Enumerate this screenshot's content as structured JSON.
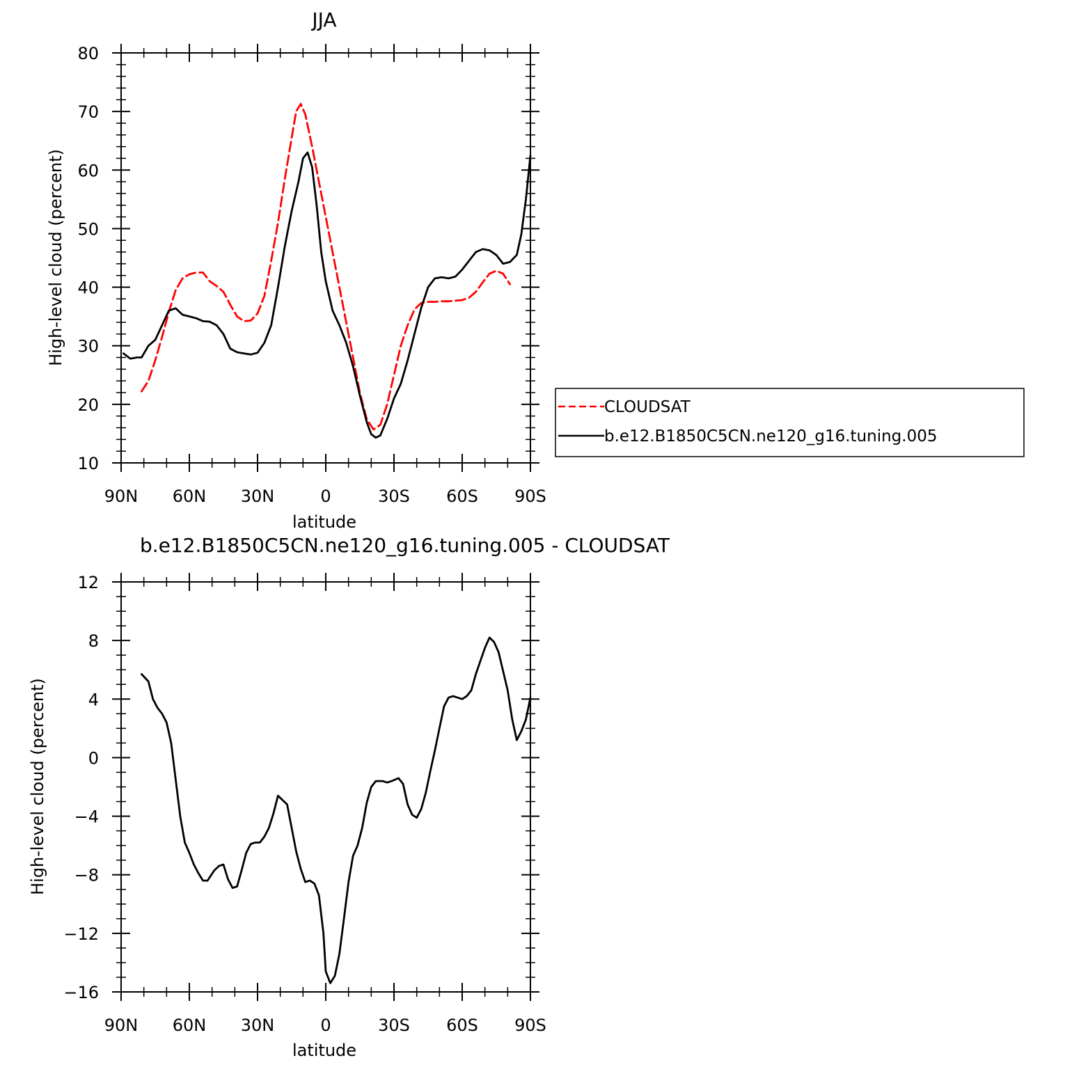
{
  "chart_data": [
    {
      "type": "line",
      "title": "JJA",
      "xlabel": "latitude",
      "ylabel": "High-level cloud (percent)",
      "xlim": [
        -90,
        90
      ],
      "ylim": [
        10,
        80
      ],
      "x_ticks": [
        -90,
        -60,
        -30,
        0,
        30,
        60,
        90
      ],
      "x_tick_labels": [
        "90N",
        "60N",
        "30N",
        "0",
        "30S",
        "60S",
        "90S"
      ],
      "y_ticks": [
        10,
        20,
        30,
        40,
        50,
        60,
        70,
        80
      ],
      "y_tick_labels": [
        "10",
        "20",
        "30",
        "40",
        "50",
        "60",
        "70",
        "80"
      ],
      "legend_position": "right",
      "series": [
        {
          "name": "CLOUDSAT",
          "color": "#ff0000",
          "dash": "dashed",
          "points": [
            [
              -81,
              22.2
            ],
            [
              -78,
              24.0
            ],
            [
              -75,
              27.5
            ],
            [
              -72,
              31.5
            ],
            [
              -69,
              35.8
            ],
            [
              -66,
              39.5
            ],
            [
              -63,
              41.5
            ],
            [
              -60,
              42.2
            ],
            [
              -57,
              42.5
            ],
            [
              -54,
              42.5
            ],
            [
              -51,
              41.0
            ],
            [
              -48,
              40.2
            ],
            [
              -45,
              39.2
            ],
            [
              -42,
              37.0
            ],
            [
              -39,
              35.0
            ],
            [
              -36,
              34.2
            ],
            [
              -33,
              34.3
            ],
            [
              -30,
              35.5
            ],
            [
              -27,
              38.5
            ],
            [
              -24,
              44.5
            ],
            [
              -21,
              51.0
            ],
            [
              -18,
              58.5
            ],
            [
              -15,
              65.5
            ],
            [
              -13,
              70.0
            ],
            [
              -11,
              71.3
            ],
            [
              -9,
              69.5
            ],
            [
              -6,
              64.0
            ],
            [
              -3,
              58.0
            ],
            [
              0,
              52.0
            ],
            [
              3,
              46.0
            ],
            [
              6,
              40.0
            ],
            [
              9,
              34.0
            ],
            [
              12,
              28.0
            ],
            [
              15,
              22.0
            ],
            [
              18,
              17.5
            ],
            [
              21,
              15.7
            ],
            [
              24,
              16.5
            ],
            [
              27,
              20.0
            ],
            [
              30,
              25.0
            ],
            [
              33,
              30.0
            ],
            [
              36,
              33.5
            ],
            [
              39,
              36.2
            ],
            [
              42,
              37.3
            ],
            [
              45,
              37.5
            ],
            [
              48,
              37.5
            ],
            [
              51,
              37.6
            ],
            [
              54,
              37.6
            ],
            [
              57,
              37.7
            ],
            [
              60,
              37.8
            ],
            [
              63,
              38.2
            ],
            [
              66,
              39.2
            ],
            [
              69,
              40.8
            ],
            [
              72,
              42.3
            ],
            [
              75,
              42.8
            ],
            [
              78,
              42.3
            ],
            [
              81,
              40.5
            ]
          ]
        },
        {
          "name": "b.e12.B1850C5CN.ne120_g16.tuning.005",
          "color": "#000000",
          "dash": "solid",
          "points": [
            [
              -89,
              28.7
            ],
            [
              -86,
              27.8
            ],
            [
              -83,
              28.0
            ],
            [
              -81,
              28.0
            ],
            [
              -78,
              30.0
            ],
            [
              -75,
              31.0
            ],
            [
              -72,
              33.5
            ],
            [
              -69,
              36.0
            ],
            [
              -66,
              36.4
            ],
            [
              -63,
              35.3
            ],
            [
              -60,
              35.0
            ],
            [
              -57,
              34.7
            ],
            [
              -54,
              34.2
            ],
            [
              -51,
              34.1
            ],
            [
              -48,
              33.5
            ],
            [
              -45,
              32.0
            ],
            [
              -42,
              29.5
            ],
            [
              -39,
              28.9
            ],
            [
              -36,
              28.7
            ],
            [
              -33,
              28.5
            ],
            [
              -30,
              28.8
            ],
            [
              -27,
              30.5
            ],
            [
              -24,
              33.5
            ],
            [
              -21,
              40.0
            ],
            [
              -18,
              47.0
            ],
            [
              -15,
              53.0
            ],
            [
              -12,
              58.0
            ],
            [
              -10,
              62.0
            ],
            [
              -8,
              63.0
            ],
            [
              -6,
              60.5
            ],
            [
              -4,
              54.0
            ],
            [
              -2,
              46.0
            ],
            [
              0,
              41.0
            ],
            [
              3,
              36.0
            ],
            [
              6,
              33.5
            ],
            [
              9,
              30.5
            ],
            [
              12,
              26.5
            ],
            [
              15,
              21.5
            ],
            [
              18,
              17.0
            ],
            [
              20,
              14.9
            ],
            [
              22,
              14.3
            ],
            [
              24,
              14.7
            ],
            [
              27,
              17.5
            ],
            [
              30,
              21.0
            ],
            [
              33,
              23.5
            ],
            [
              36,
              27.5
            ],
            [
              39,
              32.0
            ],
            [
              42,
              36.5
            ],
            [
              45,
              40.0
            ],
            [
              48,
              41.5
            ],
            [
              51,
              41.7
            ],
            [
              54,
              41.5
            ],
            [
              57,
              41.8
            ],
            [
              60,
              43.0
            ],
            [
              63,
              44.5
            ],
            [
              66,
              46.0
            ],
            [
              69,
              46.5
            ],
            [
              72,
              46.3
            ],
            [
              75,
              45.5
            ],
            [
              78,
              44.0
            ],
            [
              81,
              44.3
            ],
            [
              84,
              45.5
            ],
            [
              86,
              49.0
            ],
            [
              88,
              55.0
            ],
            [
              90,
              62.5
            ]
          ]
        }
      ]
    },
    {
      "type": "line",
      "title": "b.e12.B1850C5CN.ne120_g16.tuning.005 - CLOUDSAT",
      "xlabel": "latitude",
      "ylabel": "High-level cloud (percent)",
      "xlim": [
        -90,
        90
      ],
      "ylim": [
        -16,
        12
      ],
      "x_ticks": [
        -90,
        -60,
        -30,
        0,
        30,
        60,
        90
      ],
      "x_tick_labels": [
        "90N",
        "60N",
        "30N",
        "0",
        "30S",
        "60S",
        "90S"
      ],
      "y_ticks": [
        -16,
        -12,
        -8,
        -4,
        0,
        4,
        8,
        12
      ],
      "y_tick_labels": [
        "−16",
        "−12",
        "−8",
        "−4",
        "0",
        "4",
        "8",
        "12"
      ],
      "series": [
        {
          "color": "#000000",
          "dash": "solid",
          "points": [
            [
              -81,
              5.7
            ],
            [
              -78,
              5.2
            ],
            [
              -76,
              4.0
            ],
            [
              -74,
              3.4
            ],
            [
              -72,
              3.0
            ],
            [
              -70,
              2.4
            ],
            [
              -68,
              1.0
            ],
            [
              -66,
              -1.5
            ],
            [
              -64,
              -4.0
            ],
            [
              -62,
              -5.8
            ],
            [
              -60,
              -6.5
            ],
            [
              -58,
              -7.3
            ],
            [
              -56,
              -7.9
            ],
            [
              -54,
              -8.4
            ],
            [
              -52,
              -8.4
            ],
            [
              -49,
              -7.7
            ],
            [
              -47,
              -7.4
            ],
            [
              -45,
              -7.3
            ],
            [
              -43,
              -8.3
            ],
            [
              -41,
              -8.9
            ],
            [
              -39,
              -8.8
            ],
            [
              -37,
              -7.7
            ],
            [
              -35,
              -6.5
            ],
            [
              -33,
              -5.9
            ],
            [
              -31,
              -5.8
            ],
            [
              -29,
              -5.8
            ],
            [
              -27,
              -5.4
            ],
            [
              -25,
              -4.8
            ],
            [
              -23,
              -3.8
            ],
            [
              -21,
              -2.6
            ],
            [
              -19,
              -2.9
            ],
            [
              -17,
              -3.2
            ],
            [
              -15,
              -4.8
            ],
            [
              -13,
              -6.4
            ],
            [
              -11,
              -7.6
            ],
            [
              -9,
              -8.5
            ],
            [
              -7,
              -8.4
            ],
            [
              -5,
              -8.6
            ],
            [
              -3,
              -9.4
            ],
            [
              -1,
              -12.0
            ],
            [
              0,
              -14.6
            ],
            [
              2,
              -15.4
            ],
            [
              4,
              -14.9
            ],
            [
              6,
              -13.4
            ],
            [
              8,
              -11.0
            ],
            [
              10,
              -8.5
            ],
            [
              12,
              -6.7
            ],
            [
              14,
              -6.0
            ],
            [
              16,
              -4.8
            ],
            [
              18,
              -3.1
            ],
            [
              20,
              -2.0
            ],
            [
              22,
              -1.6
            ],
            [
              25,
              -1.6
            ],
            [
              27,
              -1.7
            ],
            [
              29,
              -1.6
            ],
            [
              32,
              -1.4
            ],
            [
              34,
              -1.8
            ],
            [
              36,
              -3.2
            ],
            [
              38,
              -3.9
            ],
            [
              40,
              -4.1
            ],
            [
              42,
              -3.5
            ],
            [
              44,
              -2.4
            ],
            [
              46,
              -0.9
            ],
            [
              48,
              0.5
            ],
            [
              50,
              2.0
            ],
            [
              52,
              3.5
            ],
            [
              54,
              4.1
            ],
            [
              56,
              4.2
            ],
            [
              58,
              4.1
            ],
            [
              60,
              4.0
            ],
            [
              62,
              4.2
            ],
            [
              64,
              4.6
            ],
            [
              66,
              5.7
            ],
            [
              68,
              6.6
            ],
            [
              70,
              7.5
            ],
            [
              72,
              8.2
            ],
            [
              74,
              7.9
            ],
            [
              76,
              7.2
            ],
            [
              78,
              5.9
            ],
            [
              80,
              4.6
            ],
            [
              82,
              2.6
            ],
            [
              84,
              1.2
            ],
            [
              86,
              1.8
            ],
            [
              88,
              2.6
            ],
            [
              90,
              4.1
            ]
          ]
        }
      ]
    }
  ]
}
